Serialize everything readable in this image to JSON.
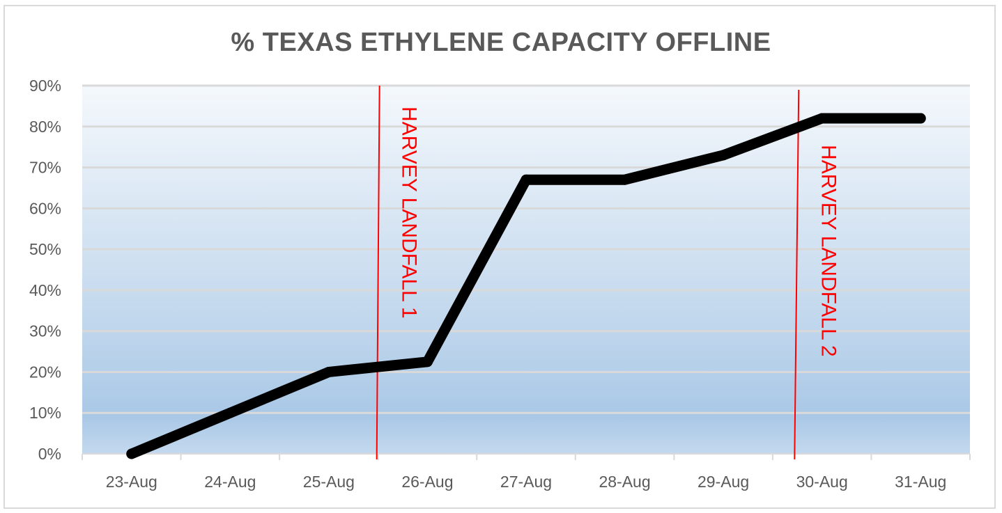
{
  "chart_data": {
    "type": "line",
    "title": "% TEXAS ETHYLENE CAPACITY OFFLINE",
    "xlabel": "",
    "ylabel": "",
    "categories": [
      "23-Aug",
      "24-Aug",
      "25-Aug",
      "26-Aug",
      "27-Aug",
      "28-Aug",
      "29-Aug",
      "30-Aug",
      "31-Aug"
    ],
    "series": [
      {
        "values": [
          0.0,
          0.1,
          0.2,
          0.225,
          0.67,
          0.67,
          0.73,
          0.82,
          0.82
        ]
      }
    ],
    "ylim": [
      0,
      0.9
    ],
    "yticks": [
      0,
      0.1,
      0.2,
      0.3,
      0.4,
      0.5,
      0.6,
      0.7,
      0.8,
      0.9
    ],
    "ytick_labels": [
      "0%",
      "10%",
      "20%",
      "30%",
      "40%",
      "50%",
      "60%",
      "70%",
      "80%",
      "90%"
    ],
    "grid": true,
    "legend": "none",
    "annotations": [
      {
        "label": "HARVEY LANDFALL 1",
        "x_position": 2.5
      },
      {
        "label": "HARVEY LANDFALL 2",
        "x_position": 6.75
      }
    ],
    "colors": {
      "line": "#000000",
      "annotation": "#ff0000",
      "grid": "#d9d9d9",
      "text": "#595959",
      "plot_gradient_top": "#f4f8fc",
      "plot_gradient_bottom": "#a9c8e6"
    }
  }
}
